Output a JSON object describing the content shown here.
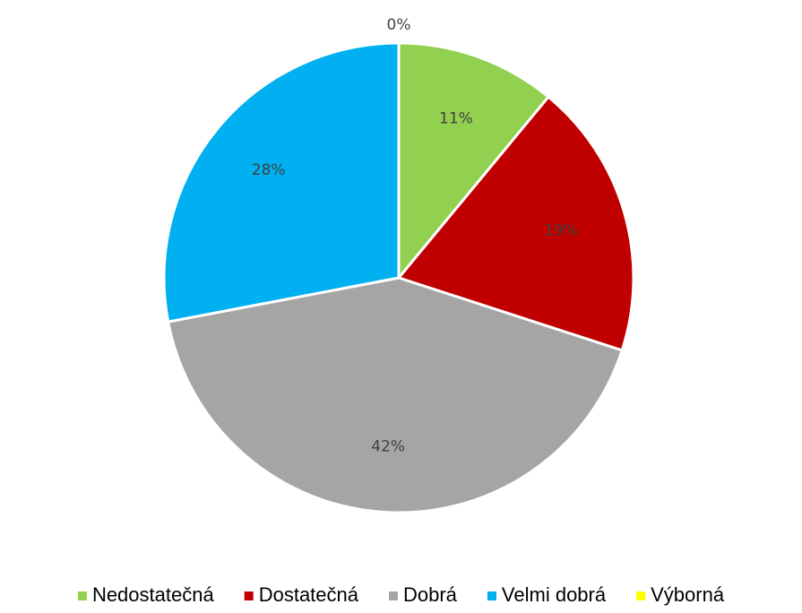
{
  "chart_data": {
    "type": "pie",
    "categories": [
      "Nedostatečná",
      "Dostatečná",
      "Dobrá",
      "Velmi dobrá",
      "Výborná"
    ],
    "values": [
      11,
      19,
      42,
      28,
      0
    ],
    "value_labels": [
      "11%",
      "19%",
      "42%",
      "28%",
      "0%"
    ],
    "colors": [
      "#92d050",
      "#c00000",
      "#a5a5a5",
      "#00b0f0",
      "#ffff00"
    ],
    "legend": "bottom"
  }
}
